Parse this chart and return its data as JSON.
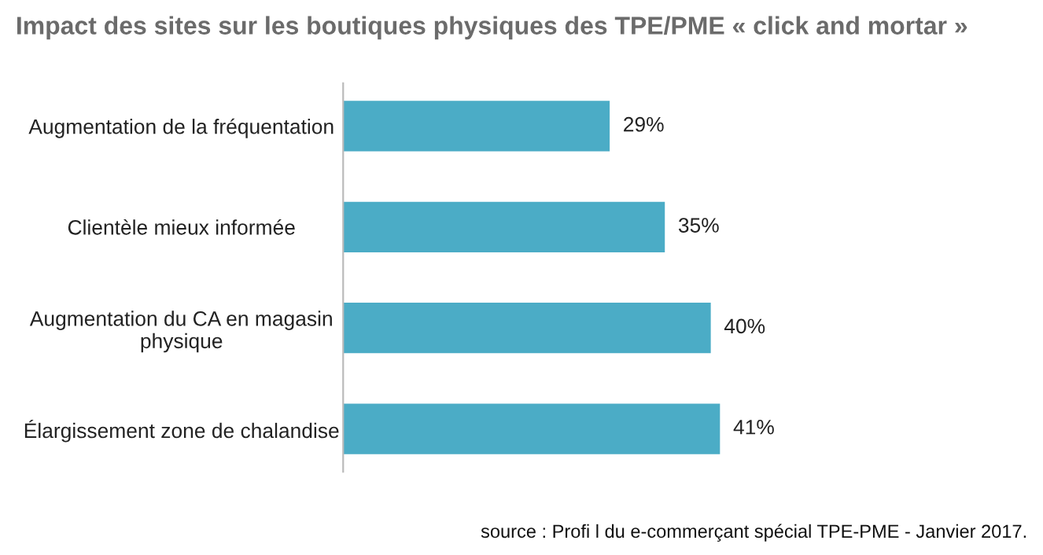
{
  "chart_data": {
    "type": "bar",
    "orientation": "horizontal",
    "title": "Impact des sites sur les boutiques physiques des TPE/PME « click and mortar »",
    "categories": [
      "Augmentation de la fréquentation",
      "Clientèle mieux informée",
      "Augmentation du CA en magasin\nphysique",
      "Élargissement zone de chalandise"
    ],
    "values": [
      29,
      35,
      40,
      41
    ],
    "value_labels": [
      "29%",
      "35%",
      "40%",
      "41%"
    ],
    "color": "#4bacc6",
    "grid": false,
    "legend": false,
    "annotations": [
      "source : Profi l du e-commerçant spécial TPE-PME - Janvier 2017."
    ]
  }
}
